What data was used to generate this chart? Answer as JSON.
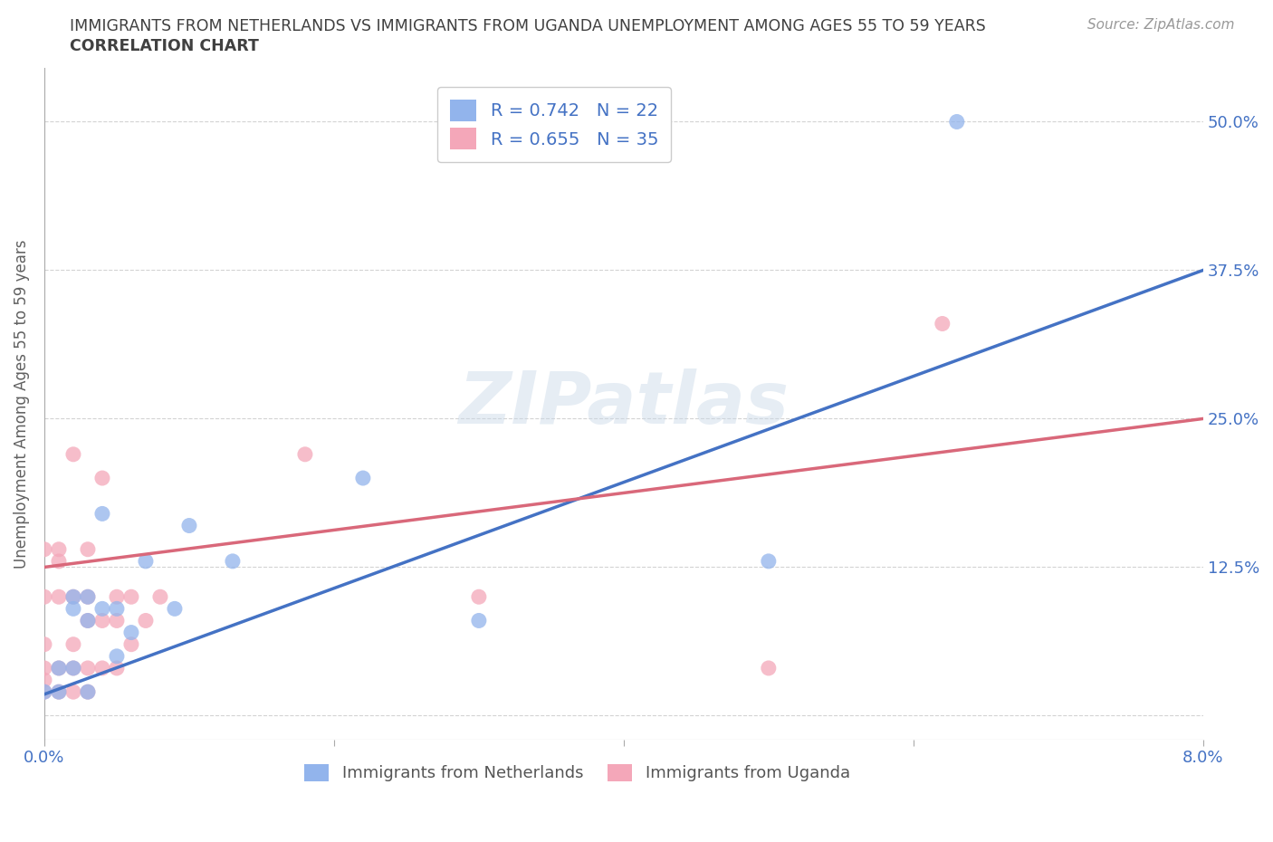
{
  "title_line1": "IMMIGRANTS FROM NETHERLANDS VS IMMIGRANTS FROM UGANDA UNEMPLOYMENT AMONG AGES 55 TO 59 YEARS",
  "title_line2": "CORRELATION CHART",
  "source_text": "Source: ZipAtlas.com",
  "ylabel": "Unemployment Among Ages 55 to 59 years",
  "xlim": [
    0.0,
    0.08
  ],
  "ylim": [
    -0.02,
    0.545
  ],
  "xticks": [
    0.0,
    0.02,
    0.04,
    0.06,
    0.08
  ],
  "xticklabels": [
    "0.0%",
    "",
    "",
    "",
    "8.0%"
  ],
  "ytick_positions": [
    0.0,
    0.125,
    0.25,
    0.375,
    0.5
  ],
  "ytick_labels": [
    "",
    "12.5%",
    "25.0%",
    "37.5%",
    "50.0%"
  ],
  "netherlands_R": 0.742,
  "netherlands_N": 22,
  "uganda_R": 0.655,
  "uganda_N": 35,
  "netherlands_color": "#92b4ec",
  "uganda_color": "#f4a7b9",
  "netherlands_line_color": "#4472c4",
  "uganda_line_color": "#d9687a",
  "nl_line_x0": 0.0,
  "nl_line_y0": 0.018,
  "nl_line_x1": 0.08,
  "nl_line_y1": 0.375,
  "ug_line_x0": 0.0,
  "ug_line_y0": 0.125,
  "ug_line_x1": 0.08,
  "ug_line_y1": 0.25,
  "netherlands_x": [
    0.0,
    0.001,
    0.001,
    0.002,
    0.002,
    0.002,
    0.003,
    0.003,
    0.003,
    0.004,
    0.004,
    0.005,
    0.005,
    0.006,
    0.007,
    0.009,
    0.01,
    0.013,
    0.022,
    0.03,
    0.05,
    0.063
  ],
  "netherlands_y": [
    0.02,
    0.02,
    0.04,
    0.04,
    0.09,
    0.1,
    0.02,
    0.1,
    0.08,
    0.09,
    0.17,
    0.05,
    0.09,
    0.07,
    0.13,
    0.09,
    0.16,
    0.13,
    0.2,
    0.08,
    0.13,
    0.5
  ],
  "uganda_x": [
    0.0,
    0.0,
    0.0,
    0.0,
    0.0,
    0.0,
    0.001,
    0.001,
    0.001,
    0.001,
    0.001,
    0.002,
    0.002,
    0.002,
    0.002,
    0.002,
    0.003,
    0.003,
    0.003,
    0.003,
    0.003,
    0.004,
    0.004,
    0.004,
    0.005,
    0.005,
    0.005,
    0.006,
    0.006,
    0.007,
    0.008,
    0.018,
    0.03,
    0.05,
    0.062
  ],
  "uganda_y": [
    0.02,
    0.03,
    0.04,
    0.06,
    0.1,
    0.14,
    0.02,
    0.04,
    0.1,
    0.13,
    0.14,
    0.02,
    0.04,
    0.06,
    0.1,
    0.22,
    0.02,
    0.04,
    0.08,
    0.1,
    0.14,
    0.04,
    0.08,
    0.2,
    0.04,
    0.08,
    0.1,
    0.06,
    0.1,
    0.08,
    0.1,
    0.22,
    0.1,
    0.04,
    0.33
  ],
  "legend_label_netherlands": "Immigrants from Netherlands",
  "legend_label_uganda": "Immigrants from Uganda",
  "background_color": "#ffffff",
  "grid_color": "#c8c8c8",
  "title_color": "#404040",
  "axis_label_color": "#606060",
  "tick_label_color": "#4472c4"
}
